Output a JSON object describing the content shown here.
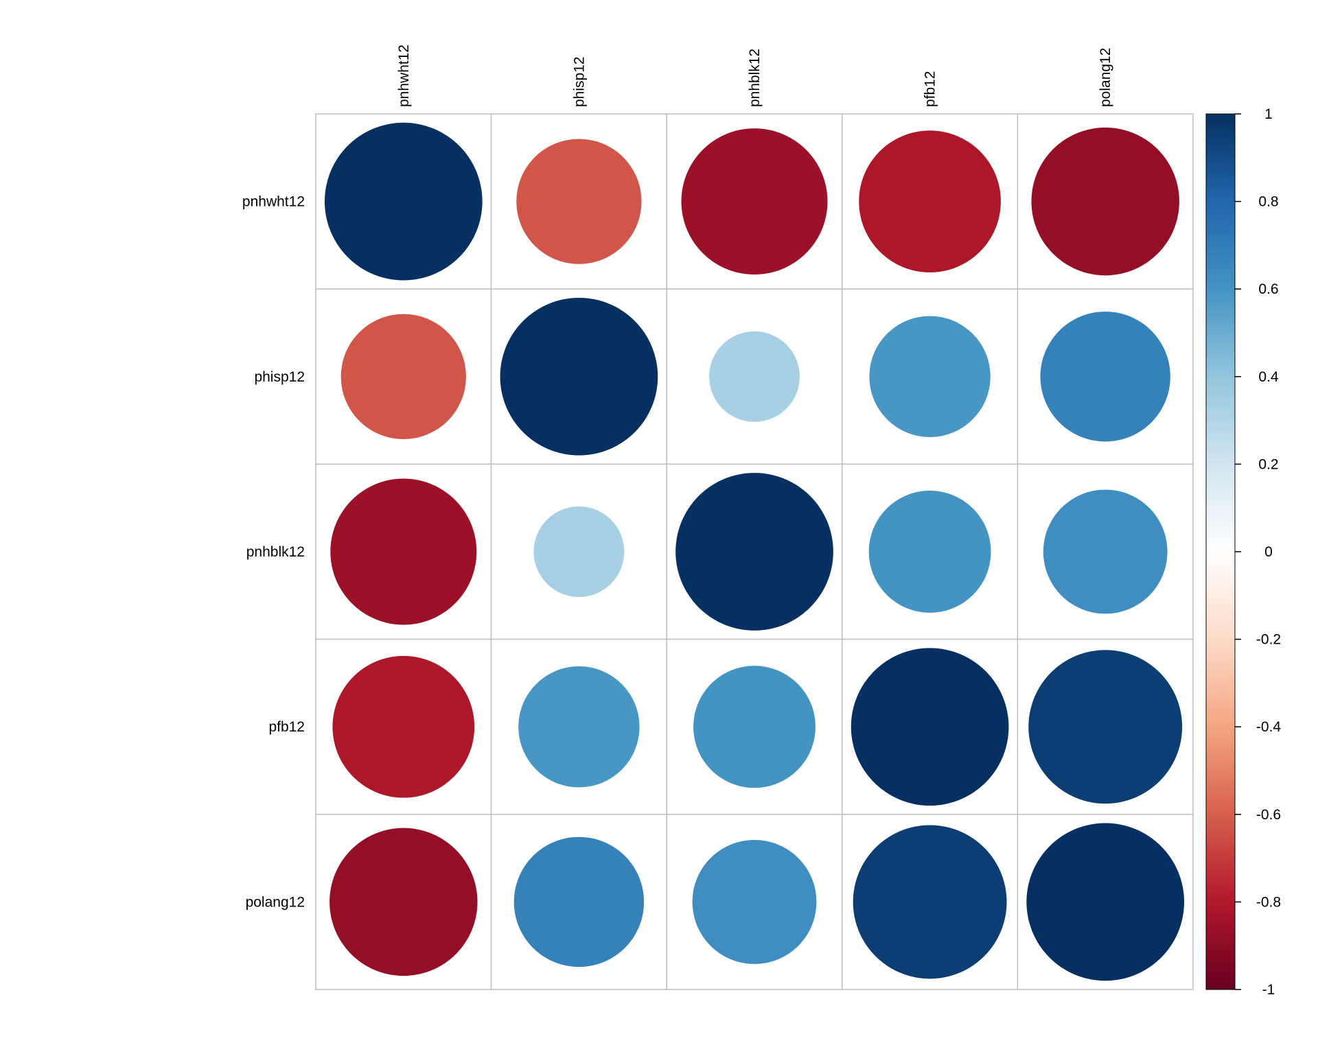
{
  "chart_data": {
    "type": "heatmap",
    "method": "circle",
    "variables": [
      "pnhwht12",
      "phisp12",
      "pnhblk12",
      "pfb12",
      "polang12"
    ],
    "matrix": [
      [
        1.0,
        -0.63,
        -0.86,
        -0.81,
        -0.88
      ],
      [
        -0.63,
        1.0,
        0.33,
        0.59,
        0.68
      ],
      [
        -0.86,
        0.33,
        1.0,
        0.6,
        0.62
      ],
      [
        -0.81,
        0.59,
        0.6,
        1.0,
        0.95
      ],
      [
        -0.88,
        0.68,
        0.62,
        0.95,
        1.0
      ]
    ],
    "colorbar": {
      "range": [
        -1,
        1
      ],
      "ticks": [
        "1",
        "0.8",
        "0.6",
        "0.4",
        "0.2",
        "0",
        "-0.2",
        "-0.4",
        "-0.6",
        "-0.8",
        "-1"
      ],
      "palette": [
        "#67001F",
        "#B2182B",
        "#D6604D",
        "#F4A582",
        "#FDDBC7",
        "#FFFFFF",
        "#D1E5F0",
        "#92C5DE",
        "#4393C3",
        "#2166AC",
        "#053061"
      ],
      "placement": "right"
    },
    "grid": true,
    "xlabel": "",
    "ylabel": "",
    "title": ""
  }
}
